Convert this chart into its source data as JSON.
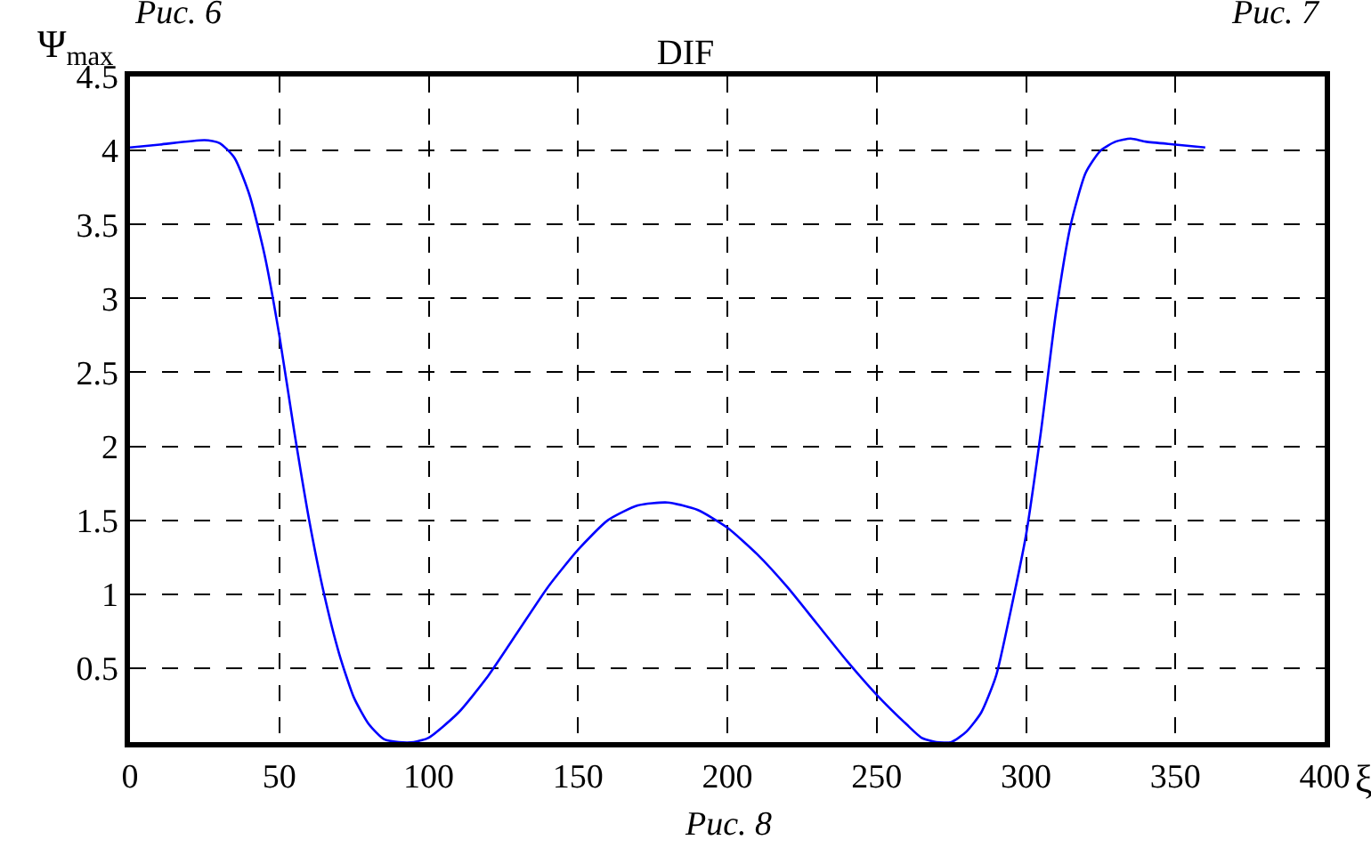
{
  "chart_data": {
    "type": "line",
    "title": "DIF",
    "xlabel": "ξ",
    "ylabel": "Ψ$_{max}$",
    "annotations": [
      "Рис. 8",
      "Рис. 6",
      "Рис. 7"
    ],
    "x": [
      0,
      10,
      25,
      30,
      35,
      40,
      45,
      50,
      55,
      60,
      65,
      70,
      75,
      80,
      85,
      90,
      95,
      100,
      110,
      120,
      130,
      140,
      150,
      160,
      170,
      180,
      190,
      200,
      210,
      220,
      230,
      240,
      250,
      260,
      265,
      270,
      275,
      280,
      285,
      290,
      295,
      300,
      305,
      310,
      315,
      320,
      325,
      330,
      335,
      340,
      350,
      360
    ],
    "series": [
      {
        "color": "#0000ff",
        "values": [
          4.02,
          4.04,
          4.07,
          4.05,
          3.95,
          3.7,
          3.3,
          2.75,
          2.1,
          1.5,
          1.0,
          0.6,
          0.3,
          0.12,
          0.02,
          0,
          0,
          0.03,
          0.2,
          0.45,
          0.75,
          1.05,
          1.3,
          1.5,
          1.6,
          1.62,
          1.57,
          1.45,
          1.27,
          1.05,
          0.8,
          0.55,
          0.32,
          0.12,
          0.03,
          0,
          0,
          0.07,
          0.2,
          0.45,
          0.9,
          1.4,
          2.1,
          2.9,
          3.5,
          3.85,
          4.0,
          4.06,
          4.08,
          4.06,
          4.04,
          4.02
        ]
      }
    ],
    "xlim": [
      0,
      400
    ],
    "xticks": [
      0,
      50,
      100,
      150,
      200,
      250,
      300,
      350,
      400
    ],
    "ylim": [
      0,
      4.5
    ],
    "yticks": [
      0.5,
      1,
      1.5,
      2,
      2.5,
      3,
      3.5,
      4,
      4.5
    ],
    "grid": true,
    "marker": "none",
    "line_style": "solid"
  }
}
